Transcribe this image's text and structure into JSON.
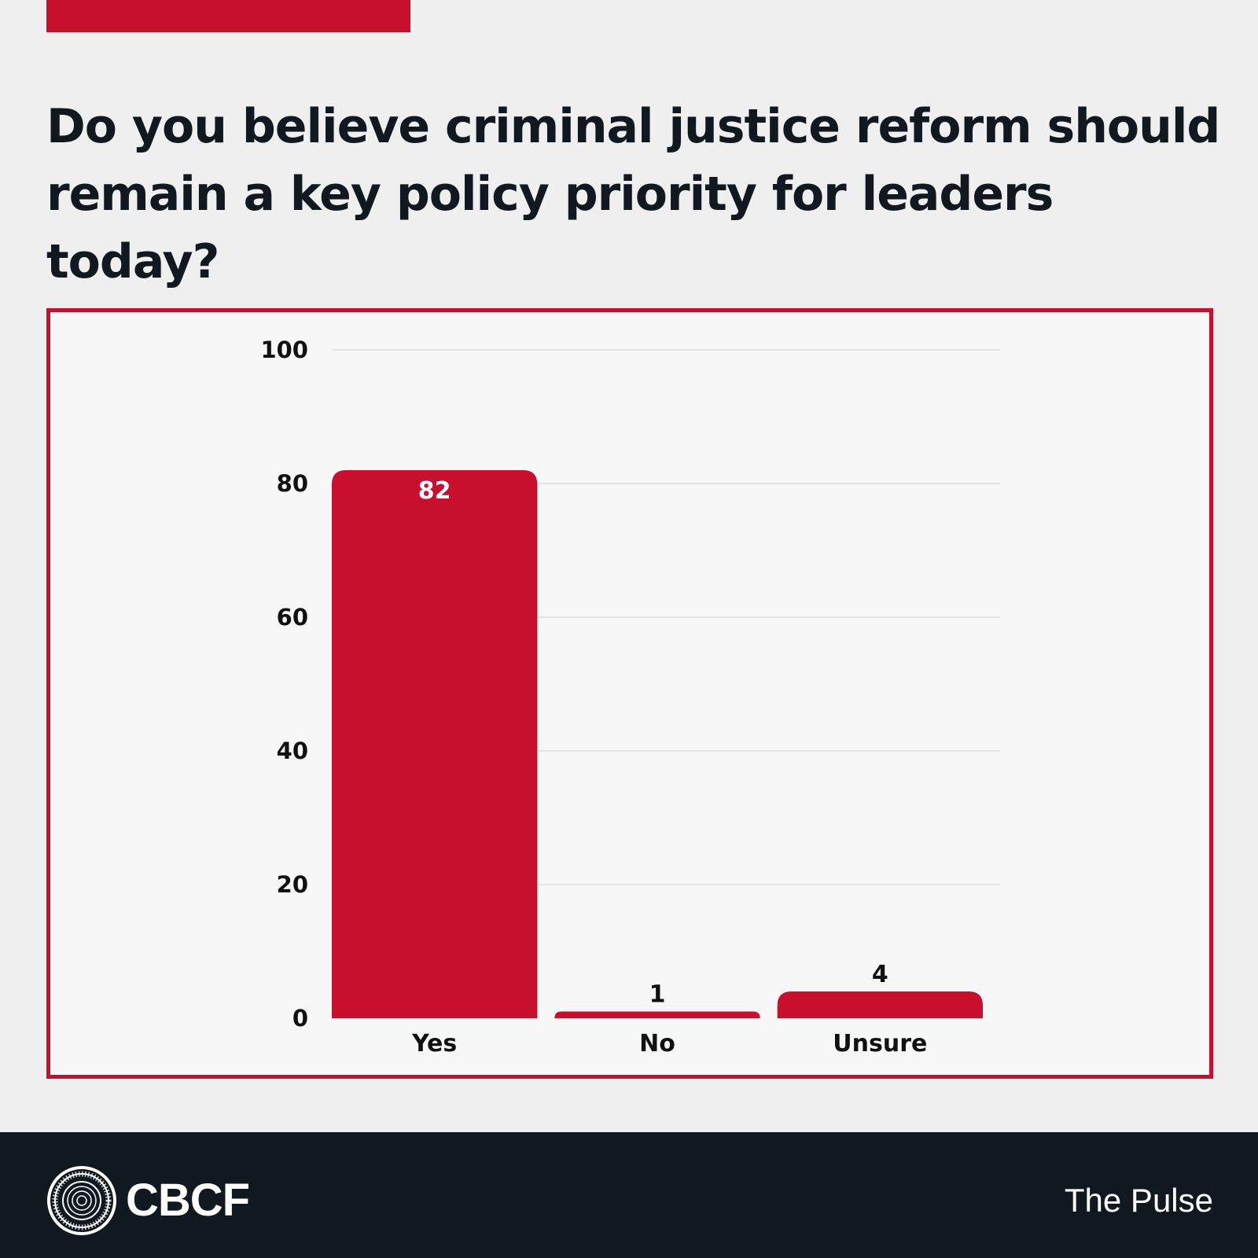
{
  "header": {
    "question": "Do you believe criminal justice reform should remain a key policy priority for leaders today?"
  },
  "colors": {
    "accent": "#c8102e",
    "text": "#111820",
    "footer_bg": "#101820",
    "frame_bg": "#f7f7f7"
  },
  "chart_data": {
    "type": "bar",
    "title": "Do you believe criminal justice reform should remain a key policy priority for leaders today?",
    "categories": [
      "Yes",
      "No",
      "Unsure"
    ],
    "values": [
      82,
      1,
      4
    ],
    "data_labels": [
      "82",
      "1",
      "4"
    ],
    "xlabel": "",
    "ylabel": "",
    "ylim": [
      0,
      100
    ],
    "yticks": [
      0,
      20,
      40,
      60,
      80,
      100
    ],
    "grid": true,
    "legend": "none",
    "bar_color": "#c8102e"
  },
  "footer": {
    "brand": "CBCF",
    "series_name": "The Pulse",
    "logo_icon": "seal-icon"
  }
}
